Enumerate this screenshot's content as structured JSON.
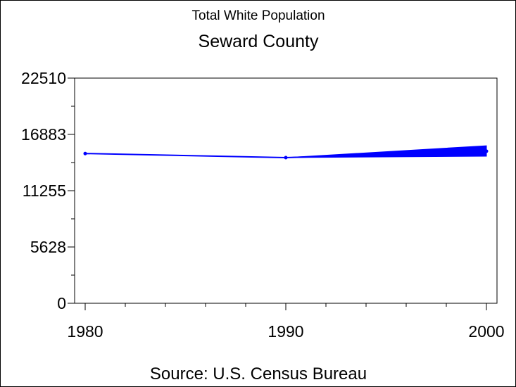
{
  "chart_data": {
    "type": "line",
    "subtitle": "Total White Population",
    "title": "Seward County",
    "source": "Source: U.S. Census Bureau",
    "xlabel": "",
    "ylabel": "",
    "xlim": [
      1980,
      2000
    ],
    "ylim": [
      0,
      22510
    ],
    "x_ticks": [
      1980,
      1990,
      2000
    ],
    "x_minor_step": 2,
    "y_ticks": [
      0,
      5628,
      11255,
      16883,
      22510
    ],
    "y_minor_ticks": [
      2814,
      8442,
      14069,
      19697
    ],
    "grid": false,
    "series": [
      {
        "color": "#0000ff",
        "x": [
          1980,
          1990,
          2000
        ],
        "values": [
          14970,
          14560,
          15200
        ],
        "end_band": [
          14700,
          15750
        ]
      }
    ]
  }
}
